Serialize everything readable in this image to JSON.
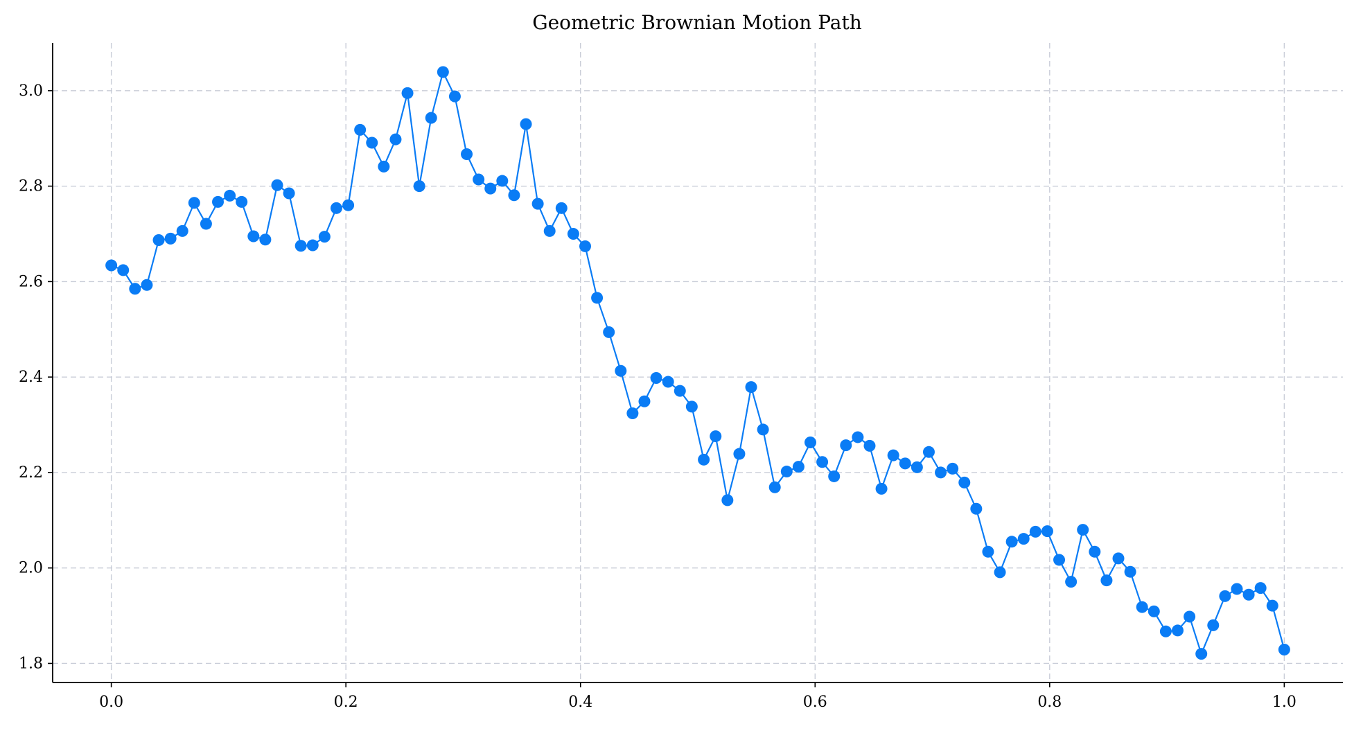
{
  "chart_data": {
    "type": "line",
    "title": "Geometric Brownian Motion Path",
    "xlabel": "",
    "ylabel": "",
    "xlim": [
      -0.05,
      1.05
    ],
    "ylim": [
      1.76,
      3.1
    ],
    "xticks": [
      "0.0",
      "0.2",
      "0.4",
      "0.6",
      "0.8",
      "1.0"
    ],
    "yticks": [
      "1.8",
      "2.0",
      "2.2",
      "2.4",
      "2.6",
      "2.8",
      "3.0"
    ],
    "grid": true,
    "legend": "none",
    "marker": "circle",
    "colors": {
      "series": "#0a7cf5",
      "grid": "#c9cdd8",
      "axis": "#000000"
    },
    "series": [
      {
        "x": [
          0.0,
          0.0101,
          0.0202,
          0.0303,
          0.0404,
          0.0505,
          0.0606,
          0.0707,
          0.0808,
          0.0909,
          0.101,
          0.1111,
          0.1212,
          0.1313,
          0.1414,
          0.1515,
          0.1616,
          0.1717,
          0.1818,
          0.1919,
          0.202,
          0.2121,
          0.2222,
          0.2323,
          0.2424,
          0.2525,
          0.2626,
          0.2727,
          0.2828,
          0.2929,
          0.303,
          0.3131,
          0.3232,
          0.3333,
          0.3434,
          0.3535,
          0.3636,
          0.3737,
          0.3838,
          0.3939,
          0.404,
          0.4141,
          0.4242,
          0.4343,
          0.4444,
          0.4545,
          0.4646,
          0.4747,
          0.4848,
          0.4949,
          0.5051,
          0.5152,
          0.5253,
          0.5354,
          0.5455,
          0.5556,
          0.5657,
          0.5758,
          0.5859,
          0.596,
          0.6061,
          0.6162,
          0.6263,
          0.6364,
          0.6465,
          0.6566,
          0.6667,
          0.6768,
          0.6869,
          0.697,
          0.7071,
          0.7172,
          0.7273,
          0.7374,
          0.7475,
          0.7576,
          0.7677,
          0.7778,
          0.7879,
          0.798,
          0.8081,
          0.8182,
          0.8283,
          0.8384,
          0.8485,
          0.8586,
          0.8687,
          0.8788,
          0.8889,
          0.899,
          0.9091,
          0.9192,
          0.9293,
          0.9394,
          0.9495,
          0.9596,
          0.9697,
          0.9798,
          0.9899,
          1.0
        ],
        "values": [
          2.634,
          2.624,
          2.585,
          2.593,
          2.687,
          2.69,
          2.706,
          2.765,
          2.721,
          2.767,
          2.78,
          2.767,
          2.695,
          2.688,
          2.802,
          2.785,
          2.675,
          2.676,
          2.694,
          2.754,
          2.76,
          2.918,
          2.891,
          2.841,
          2.898,
          2.995,
          2.8,
          2.943,
          3.039,
          2.988,
          2.867,
          2.814,
          2.795,
          2.811,
          2.781,
          2.93,
          2.763,
          2.706,
          2.754,
          2.7,
          2.674,
          2.566,
          2.494,
          2.413,
          2.324,
          2.349,
          2.398,
          2.39,
          2.371,
          2.338,
          2.227,
          2.276,
          2.142,
          2.239,
          2.379,
          2.29,
          2.169,
          2.202,
          2.212,
          2.263,
          2.222,
          2.192,
          2.257,
          2.274,
          2.256,
          2.166,
          2.236,
          2.219,
          2.211,
          2.243,
          2.2,
          2.208,
          2.179,
          2.124,
          2.034,
          1.991,
          2.055,
          2.061,
          2.076,
          2.077,
          2.017,
          1.971,
          2.08,
          2.034,
          1.974,
          2.02,
          1.992,
          1.918,
          1.909,
          1.867,
          1.869,
          1.898,
          1.82,
          1.88,
          1.941,
          1.956,
          1.944,
          1.958,
          1.921,
          1.829
        ]
      }
    ]
  }
}
